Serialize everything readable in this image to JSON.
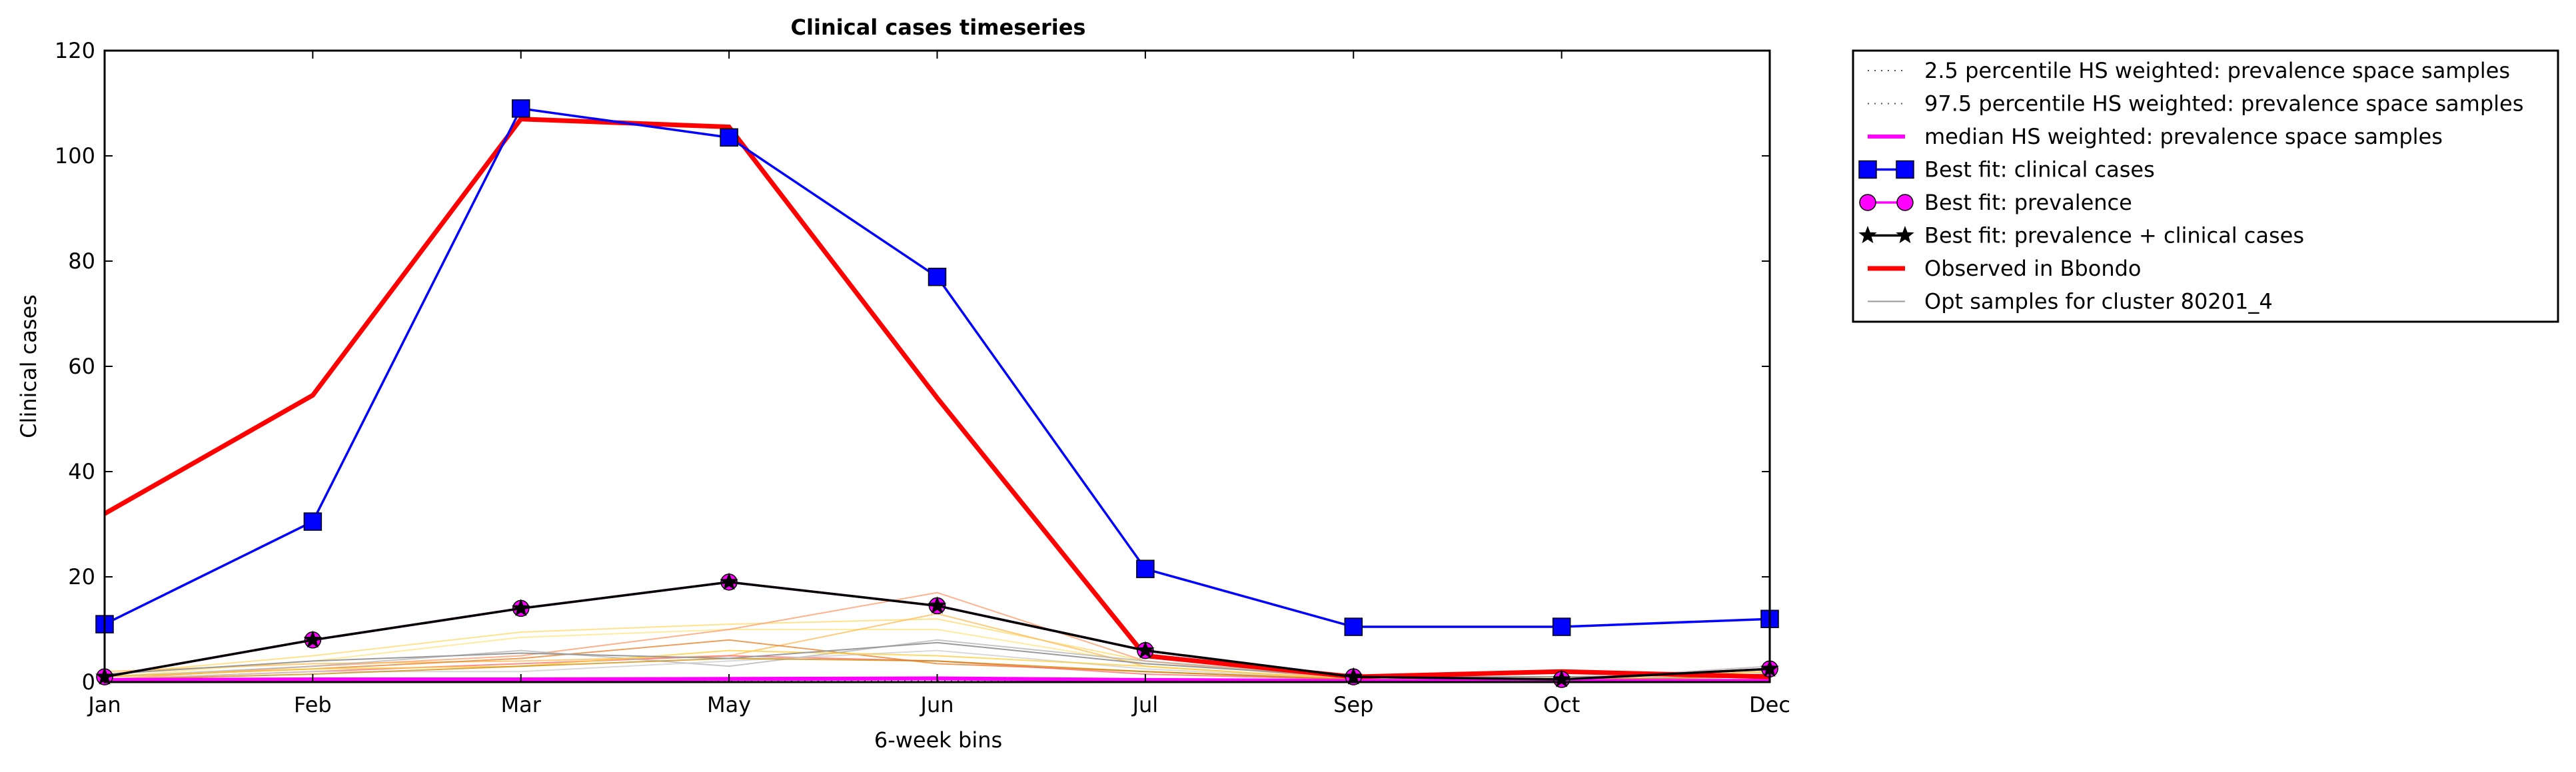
{
  "chart_data": {
    "type": "line",
    "title": "Clinical cases timeseries",
    "xlabel": "6-week bins",
    "ylabel": "Clinical cases",
    "categories": [
      "Jan",
      "Feb",
      "Mar",
      "May",
      "Jun",
      "Jul",
      "Sep",
      "Oct",
      "Dec"
    ],
    "ylim": [
      0,
      120
    ],
    "yticks": [
      "0",
      "20",
      "40",
      "60",
      "80",
      "100",
      "120"
    ],
    "grid": false,
    "legend_position": "outside top-right",
    "series": [
      {
        "name": "2.5 percentile HS weighted: prevalence space samples",
        "color": "#555555",
        "style": "dotted",
        "values": [
          0.2,
          0.2,
          0.3,
          0.3,
          0.3,
          0.2,
          0.1,
          0.1,
          0.1
        ]
      },
      {
        "name": "97.5 percentile HS weighted: prevalence space samples",
        "color": "#555555",
        "style": "dotted",
        "values": [
          0.5,
          0.6,
          0.7,
          0.8,
          0.9,
          0.5,
          0.2,
          0.2,
          0.3
        ]
      },
      {
        "name": "median HS weighted: prevalence space samples",
        "color": "#ff00ff",
        "style": "solid",
        "values": [
          0.4,
          0.5,
          0.5,
          0.6,
          0.7,
          0.4,
          0.2,
          0.2,
          0.2
        ]
      },
      {
        "name": "Best fit: clinical cases",
        "color": "#0000ff",
        "marker": "square",
        "values": [
          11,
          30.5,
          109,
          103.5,
          77,
          21.5,
          10.5,
          10.5,
          12
        ]
      },
      {
        "name": "Best fit: prevalence",
        "color": "#ff00ff",
        "marker": "circle",
        "values": [
          1,
          8,
          14,
          19,
          14.5,
          6,
          1,
          0.5,
          2.5
        ]
      },
      {
        "name": "Best fit: prevalence + clinical cases",
        "color": "#000000",
        "marker": "star",
        "values": [
          1,
          8,
          14,
          19,
          14.5,
          6,
          1,
          0.5,
          2.5
        ]
      },
      {
        "name": "Observed in Bbondo",
        "color": "#ff0000",
        "style": "thick",
        "values": [
          32,
          54.5,
          107,
          105.5,
          54,
          5,
          1,
          2,
          1
        ]
      },
      {
        "name": "Opt samples for cluster 80201_4",
        "color": "#999999",
        "style": "thin",
        "values": [
          1.5,
          4,
          5.5,
          4.5,
          7.5,
          3.5,
          1,
          1,
          1.5
        ]
      }
    ],
    "opt_samples_extra": [
      {
        "color": "#ffd966",
        "values": [
          1.5,
          5,
          9.5,
          11,
          12,
          4,
          1,
          1,
          1.5
        ]
      },
      {
        "color": "#ffe680",
        "values": [
          1,
          4,
          8.5,
          10,
          10,
          3.5,
          1,
          0.8,
          1.5
        ]
      },
      {
        "color": "#ff9966",
        "values": [
          0.5,
          3,
          5,
          10,
          17,
          4,
          0.5,
          0.5,
          1
        ]
      },
      {
        "color": "#ffb84d",
        "values": [
          2,
          3.5,
          4,
          5,
          13,
          3,
          0.5,
          0.5,
          2
        ]
      },
      {
        "color": "#e67e22",
        "values": [
          1,
          2.5,
          4.5,
          8,
          3.5,
          2,
          0.5,
          0.5,
          1
        ]
      },
      {
        "color": "#ff6666",
        "values": [
          0.5,
          2,
          3.5,
          5,
          4,
          1.5,
          0.5,
          0.5,
          0.5
        ]
      },
      {
        "color": "#b3b3b3",
        "values": [
          1,
          3,
          6,
          3,
          8,
          4,
          1,
          0.5,
          3
        ]
      },
      {
        "color": "#cccccc",
        "values": [
          0.5,
          2,
          2,
          4,
          6,
          2.5,
          0.5,
          0.5,
          1
        ]
      },
      {
        "color": "#ffcc33",
        "values": [
          1,
          2.5,
          3,
          6,
          5,
          3,
          0.5,
          0.5,
          2
        ]
      },
      {
        "color": "#cc8800",
        "values": [
          0.5,
          1.5,
          3,
          4.5,
          4,
          2,
          0.5,
          0.5,
          1
        ]
      }
    ]
  }
}
